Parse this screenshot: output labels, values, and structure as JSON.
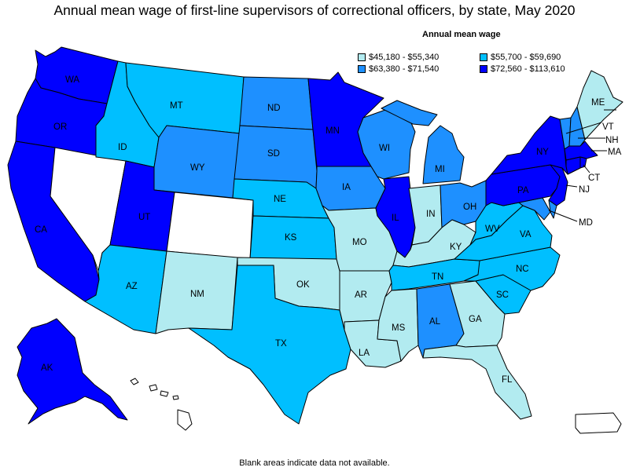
{
  "title": "Annual mean wage of first-line supervisors of correctional officers, by state, May 2020",
  "footnote": "Blank areas indicate data not available.",
  "legend": {
    "title": "Annual mean wage",
    "items": [
      {
        "label": "$45,180 - $55,340",
        "color": "#b2ebf0"
      },
      {
        "label": "$55,700 - $59,690",
        "color": "#00bfff"
      },
      {
        "label": "$63,380 - $71,540",
        "color": "#1e90ff"
      },
      {
        "label": "$72,560 - $113,610",
        "color": "#0000ff"
      }
    ]
  },
  "colors": {
    "c1": "#b2ebf0",
    "c2": "#00bfff",
    "c3": "#1e90ff",
    "c4": "#0000ff",
    "none": "#ffffff"
  },
  "states": [
    {
      "abbr": "WA",
      "class": 4
    },
    {
      "abbr": "OR",
      "class": 4
    },
    {
      "abbr": "CA",
      "class": 4
    },
    {
      "abbr": "NV",
      "class": 0
    },
    {
      "abbr": "ID",
      "class": 2
    },
    {
      "abbr": "MT",
      "class": 2
    },
    {
      "abbr": "WY",
      "class": 3
    },
    {
      "abbr": "UT",
      "class": 4
    },
    {
      "abbr": "CO",
      "class": 0
    },
    {
      "abbr": "AZ",
      "class": 2
    },
    {
      "abbr": "NM",
      "class": 1
    },
    {
      "abbr": "ND",
      "class": 3
    },
    {
      "abbr": "SD",
      "class": 3
    },
    {
      "abbr": "NE",
      "class": 2
    },
    {
      "abbr": "KS",
      "class": 2
    },
    {
      "abbr": "OK",
      "class": 1
    },
    {
      "abbr": "TX",
      "class": 2
    },
    {
      "abbr": "MN",
      "class": 4
    },
    {
      "abbr": "IA",
      "class": 3
    },
    {
      "abbr": "MO",
      "class": 1
    },
    {
      "abbr": "AR",
      "class": 1
    },
    {
      "abbr": "LA",
      "class": 1
    },
    {
      "abbr": "WI",
      "class": 3
    },
    {
      "abbr": "IL",
      "class": 4
    },
    {
      "abbr": "MI",
      "class": 3
    },
    {
      "abbr": "IN",
      "class": 1
    },
    {
      "abbr": "OH",
      "class": 3
    },
    {
      "abbr": "KY",
      "class": 1
    },
    {
      "abbr": "TN",
      "class": 2
    },
    {
      "abbr": "MS",
      "class": 1
    },
    {
      "abbr": "AL",
      "class": 3
    },
    {
      "abbr": "GA",
      "class": 1
    },
    {
      "abbr": "FL",
      "class": 1
    },
    {
      "abbr": "SC",
      "class": 2
    },
    {
      "abbr": "NC",
      "class": 2
    },
    {
      "abbr": "VA",
      "class": 2
    },
    {
      "abbr": "WV",
      "class": 2
    },
    {
      "abbr": "MD",
      "class": 3
    },
    {
      "abbr": "DE",
      "class": 3
    },
    {
      "abbr": "PA",
      "class": 4
    },
    {
      "abbr": "NJ",
      "class": 4
    },
    {
      "abbr": "NY",
      "class": 4
    },
    {
      "abbr": "CT",
      "class": 4
    },
    {
      "abbr": "RI",
      "class": 4
    },
    {
      "abbr": "MA",
      "class": 4
    },
    {
      "abbr": "VT",
      "class": 3
    },
    {
      "abbr": "NH",
      "class": 3
    },
    {
      "abbr": "ME",
      "class": 1
    },
    {
      "abbr": "AK",
      "class": 4
    },
    {
      "abbr": "HI",
      "class": 0
    },
    {
      "abbr": "PR",
      "class": 0
    }
  ]
}
